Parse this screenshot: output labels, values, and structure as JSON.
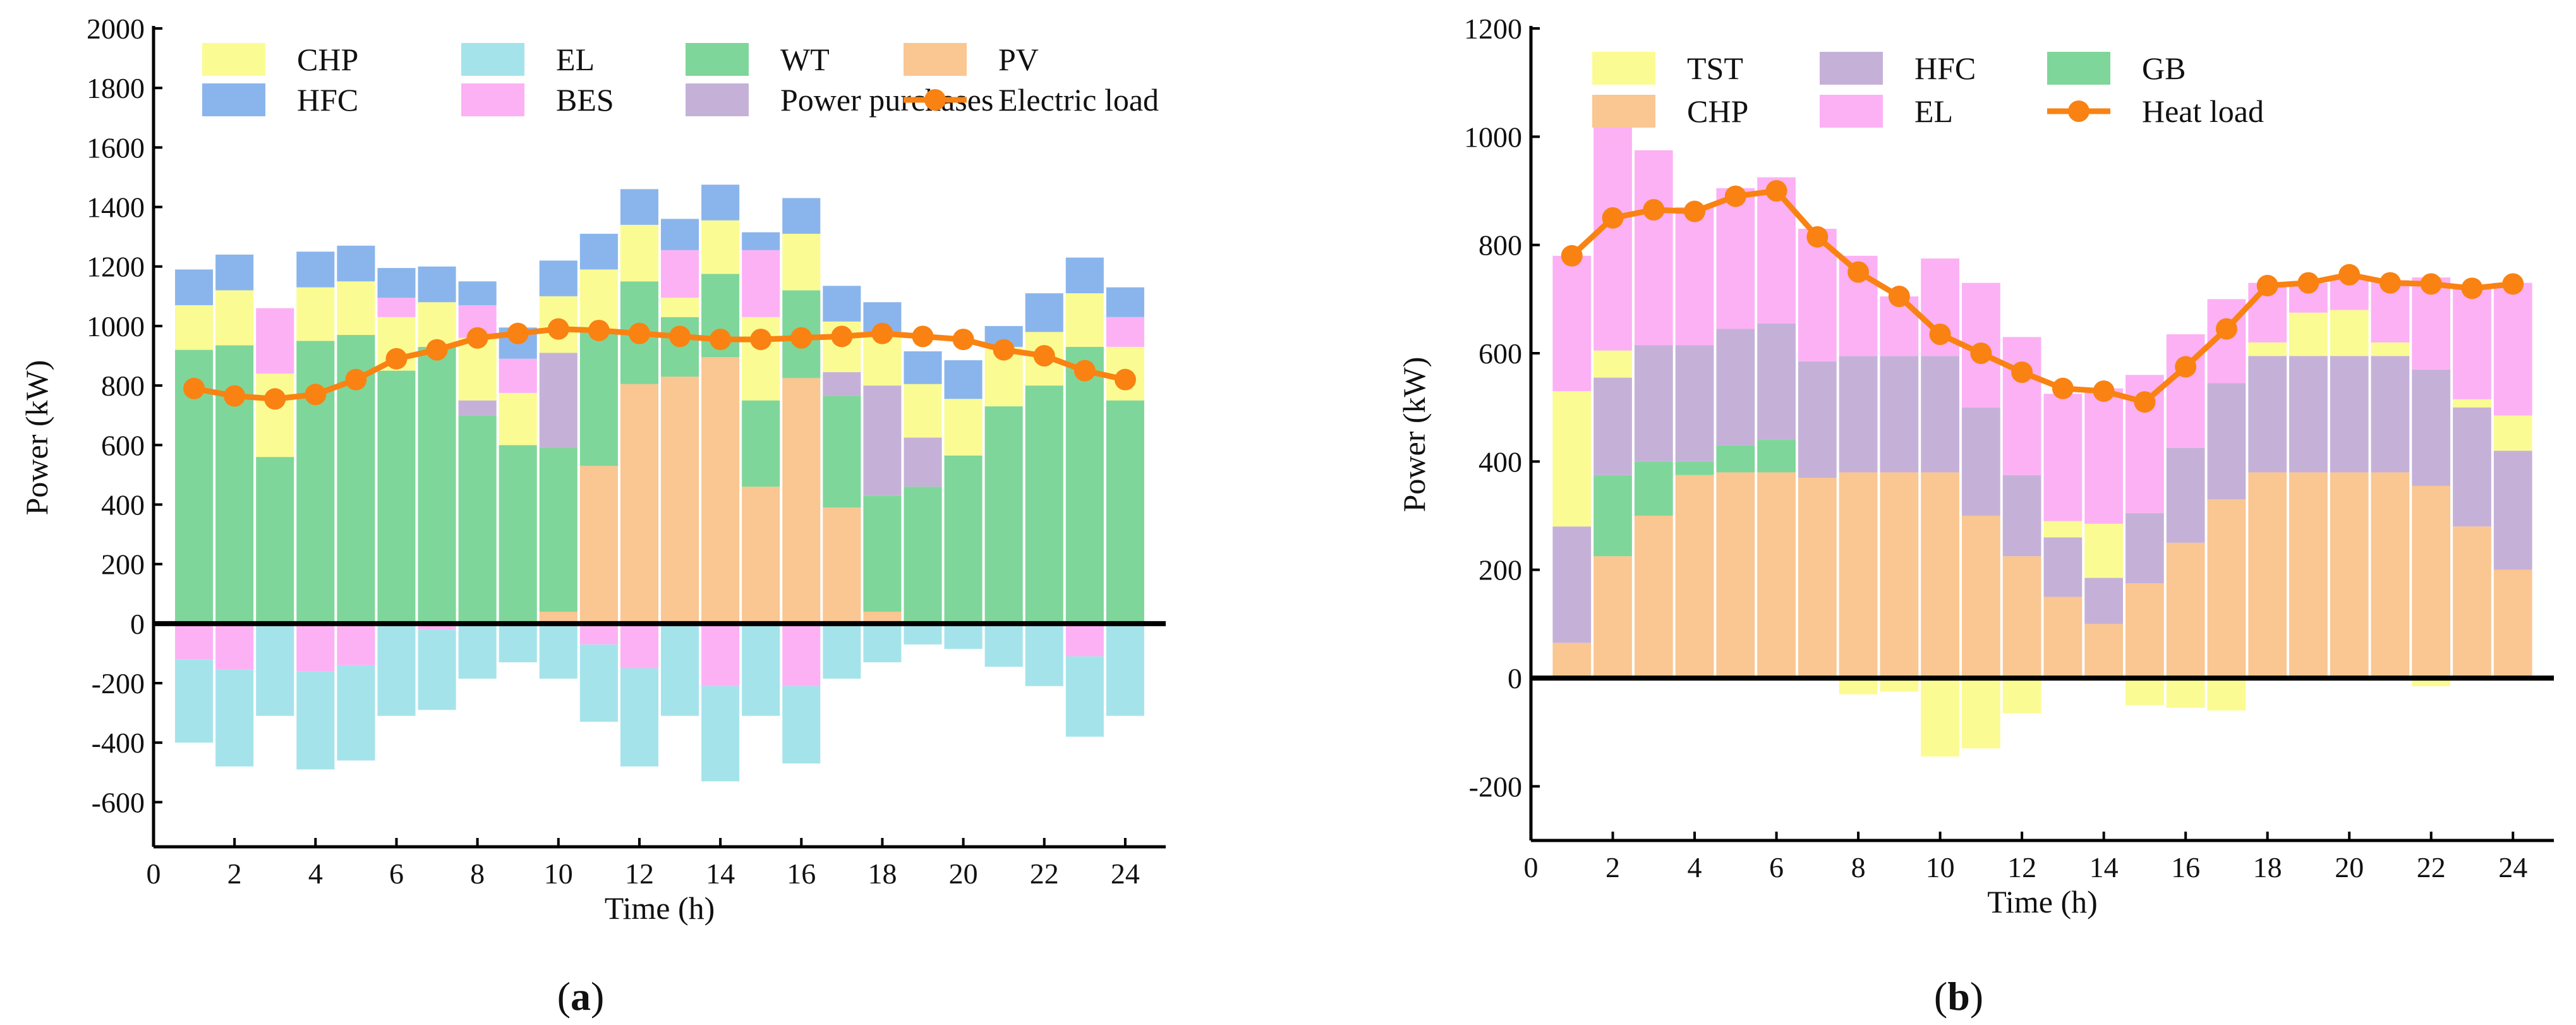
{
  "chart_data": [
    {
      "panel": "(a)",
      "type": "bar",
      "stacked": true,
      "xlabel": "Time (h)",
      "ylabel": "Power (kW)",
      "xlim": [
        0,
        25
      ],
      "ylim": [
        -750,
        2000
      ],
      "xticks": [
        0,
        2,
        4,
        6,
        8,
        10,
        12,
        14,
        16,
        18,
        20,
        22,
        24
      ],
      "yticks": [
        -600,
        -400,
        -200,
        0,
        200,
        400,
        600,
        800,
        1000,
        1200,
        1400,
        1600,
        1800,
        2000
      ],
      "legend_position": "top",
      "legend_order": [
        "CHP",
        "EL",
        "WT",
        "PV",
        "HFC",
        "BES",
        "Power purchases",
        "Electric load"
      ],
      "series": [
        {
          "name": "PV",
          "color": "#FAC691",
          "values": [
            0,
            0,
            0,
            0,
            0,
            0,
            0,
            0,
            0,
            40,
            530,
            805,
            830,
            895,
            460,
            825,
            390,
            40,
            0,
            0,
            0,
            0,
            0,
            0
          ]
        },
        {
          "name": "WT",
          "color": "#7FD69A",
          "values": [
            920,
            935,
            560,
            950,
            970,
            850,
            930,
            700,
            600,
            550,
            450,
            345,
            200,
            280,
            290,
            295,
            375,
            390,
            460,
            565,
            730,
            800,
            930,
            750
          ]
        },
        {
          "name": "Power purchases",
          "color": "#C5B1D8",
          "values": [
            0,
            0,
            0,
            0,
            0,
            0,
            0,
            50,
            0,
            320,
            0,
            0,
            0,
            0,
            0,
            0,
            80,
            370,
            165,
            0,
            0,
            0,
            0,
            0
          ]
        },
        {
          "name": "CHP",
          "color": "#FBFB93",
          "values": [
            150,
            185,
            280,
            180,
            180,
            180,
            150,
            210,
            175,
            190,
            210,
            190,
            65,
            180,
            280,
            190,
            170,
            180,
            180,
            190,
            200,
            180,
            180,
            180
          ]
        },
        {
          "name": "BES",
          "color": "#FCB1F4",
          "values": [
            0,
            0,
            220,
            0,
            0,
            65,
            0,
            110,
            115,
            0,
            0,
            0,
            160,
            0,
            225,
            0,
            0,
            0,
            0,
            0,
            0,
            0,
            0,
            100
          ]
        },
        {
          "name": "HFC",
          "color": "#8AB5EC",
          "values": [
            120,
            120,
            0,
            120,
            120,
            100,
            120,
            80,
            105,
            120,
            120,
            120,
            105,
            120,
            60,
            120,
            120,
            100,
            110,
            130,
            70,
            130,
            120,
            100
          ]
        },
        {
          "name": "BES",
          "color": "#FCB1F4",
          "values": [
            -120,
            -155,
            0,
            -160,
            -140,
            0,
            -20,
            0,
            0,
            0,
            -70,
            -150,
            0,
            -210,
            0,
            -210,
            0,
            0,
            0,
            0,
            0,
            0,
            -110,
            0
          ]
        },
        {
          "name": "EL",
          "color": "#A5E3EB",
          "values": [
            -280,
            -325,
            -310,
            -330,
            -320,
            -310,
            -270,
            -185,
            -130,
            -185,
            -260,
            -330,
            -310,
            -320,
            -310,
            -260,
            -185,
            -130,
            -70,
            -85,
            -145,
            -210,
            -270,
            -310
          ]
        }
      ],
      "line": {
        "name": "Electric load",
        "color": "#F98212",
        "x": [
          1,
          2,
          3,
          4,
          5,
          6,
          7,
          8,
          9,
          10,
          11,
          12,
          13,
          14,
          15,
          16,
          17,
          18,
          19,
          20,
          21,
          22,
          23,
          24
        ],
        "values": [
          790,
          765,
          755,
          770,
          820,
          890,
          920,
          960,
          975,
          990,
          985,
          975,
          965,
          955,
          955,
          960,
          965,
          975,
          965,
          955,
          920,
          900,
          850,
          820
        ]
      }
    },
    {
      "panel": "(b)",
      "type": "bar",
      "stacked": true,
      "xlabel": "Time (h)",
      "ylabel": "Power (kW)",
      "xlim": [
        0,
        25
      ],
      "ylim": [
        -300,
        1200
      ],
      "xticks": [
        0,
        2,
        4,
        6,
        8,
        10,
        12,
        14,
        16,
        18,
        20,
        22,
        24
      ],
      "yticks": [
        -200,
        0,
        200,
        400,
        600,
        800,
        1000,
        1200
      ],
      "legend_position": "top",
      "legend_order": [
        "TST",
        "HFC",
        "GB",
        "CHP",
        "EL",
        "Heat load"
      ],
      "series": [
        {
          "name": "CHP",
          "color": "#FAC691",
          "values": [
            65,
            225,
            300,
            375,
            380,
            380,
            370,
            380,
            380,
            380,
            300,
            225,
            150,
            100,
            175,
            250,
            330,
            380,
            380,
            380,
            380,
            355,
            280,
            200
          ]
        },
        {
          "name": "GB",
          "color": "#7FD69A",
          "values": [
            0,
            150,
            100,
            25,
            50,
            60,
            0,
            0,
            0,
            0,
            0,
            0,
            0,
            0,
            0,
            0,
            0,
            0,
            0,
            0,
            0,
            0,
            0,
            0
          ]
        },
        {
          "name": "HFC",
          "color": "#C5B1D8",
          "values": [
            215,
            180,
            215,
            215,
            215,
            215,
            215,
            215,
            215,
            215,
            200,
            150,
            110,
            85,
            130,
            175,
            215,
            215,
            215,
            215,
            215,
            215,
            220,
            220
          ]
        },
        {
          "name": "TST",
          "color": "#FBFB93",
          "values": [
            250,
            50,
            0,
            0,
            0,
            0,
            0,
            0,
            0,
            0,
            0,
            0,
            30,
            100,
            0,
            0,
            0,
            25,
            80,
            85,
            25,
            0,
            15,
            65
          ]
        },
        {
          "name": "EL",
          "color": "#FCB1F4",
          "values": [
            250,
            455,
            360,
            255,
            260,
            270,
            245,
            185,
            110,
            180,
            230,
            255,
            235,
            250,
            255,
            210,
            155,
            110,
            55,
            60,
            115,
            170,
            210,
            245
          ]
        },
        {
          "name": "TST",
          "color": "#FBFB93",
          "values": [
            0,
            0,
            0,
            0,
            0,
            0,
            0,
            -30,
            -25,
            -145,
            -130,
            -65,
            0,
            0,
            -50,
            -55,
            -60,
            0,
            0,
            0,
            0,
            -15,
            0,
            0
          ]
        }
      ],
      "line": {
        "name": "Heat load",
        "color": "#F98212",
        "x": [
          1,
          2,
          3,
          4,
          5,
          6,
          7,
          8,
          9,
          10,
          11,
          12,
          13,
          14,
          15,
          16,
          17,
          18,
          19,
          20,
          21,
          22,
          23,
          24
        ],
        "values": [
          780,
          850,
          865,
          862,
          890,
          900,
          815,
          750,
          705,
          635,
          600,
          565,
          535,
          530,
          510,
          575,
          645,
          725,
          730,
          745,
          730,
          728,
          720,
          728
        ]
      }
    }
  ],
  "captions": [
    {
      "open": "(",
      "letter": "a",
      "close": ")"
    },
    {
      "open": "(",
      "letter": "b",
      "close": ")"
    }
  ]
}
